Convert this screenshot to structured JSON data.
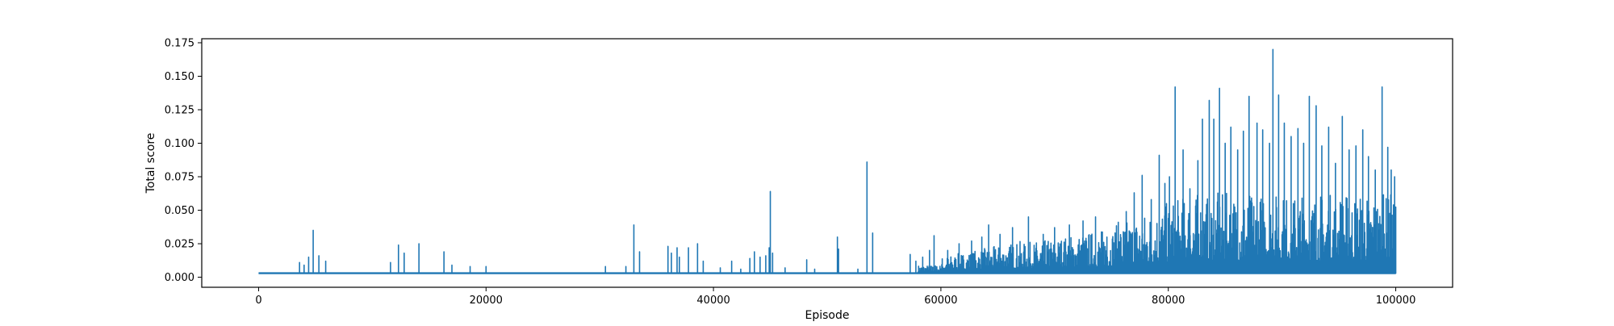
{
  "chart_data": {
    "type": "line",
    "title": "",
    "xlabel": "Episode",
    "ylabel": "Total score",
    "xlim": [
      -5000,
      105000
    ],
    "ylim": [
      -0.0075,
      0.178
    ],
    "x_ticks": [
      0,
      20000,
      40000,
      60000,
      80000,
      100000
    ],
    "x_tick_labels": [
      "0",
      "20000",
      "40000",
      "60000",
      "80000",
      "100000"
    ],
    "y_ticks": [
      0.0,
      0.025,
      0.05,
      0.075,
      0.1,
      0.125,
      0.15,
      0.175
    ],
    "y_tick_labels": [
      "0.000",
      "0.025",
      "0.050",
      "0.075",
      "0.100",
      "0.125",
      "0.150",
      "0.175"
    ],
    "grid": false,
    "legend": "none",
    "baseline": 0.003,
    "series": [
      {
        "color": "#1f77b4",
        "episodes": 100000,
        "spikes": [
          [
            3600,
            0.011
          ],
          [
            4000,
            0.009
          ],
          [
            4400,
            0.015
          ],
          [
            4800,
            0.035
          ],
          [
            5300,
            0.016
          ],
          [
            5900,
            0.012
          ],
          [
            11600,
            0.011
          ],
          [
            12300,
            0.024
          ],
          [
            12800,
            0.018
          ],
          [
            14100,
            0.025
          ],
          [
            16300,
            0.019
          ],
          [
            17000,
            0.009
          ],
          [
            18600,
            0.008
          ],
          [
            20000,
            0.008
          ],
          [
            30500,
            0.008
          ],
          [
            32300,
            0.008
          ],
          [
            33000,
            0.039
          ],
          [
            33500,
            0.019
          ],
          [
            36000,
            0.023
          ],
          [
            36300,
            0.018
          ],
          [
            36800,
            0.022
          ],
          [
            37000,
            0.015
          ],
          [
            37800,
            0.022
          ],
          [
            38600,
            0.025
          ],
          [
            39100,
            0.012
          ],
          [
            40600,
            0.007
          ],
          [
            41600,
            0.012
          ],
          [
            42400,
            0.006
          ],
          [
            43200,
            0.014
          ],
          [
            43600,
            0.019
          ],
          [
            44100,
            0.015
          ],
          [
            44600,
            0.016
          ],
          [
            44900,
            0.022
          ],
          [
            45000,
            0.064
          ],
          [
            45200,
            0.018
          ],
          [
            46300,
            0.007
          ],
          [
            48200,
            0.013
          ],
          [
            48900,
            0.006
          ],
          [
            50900,
            0.03
          ],
          [
            51000,
            0.021
          ],
          [
            52700,
            0.006
          ],
          [
            53500,
            0.086
          ],
          [
            54000,
            0.033
          ],
          [
            57300,
            0.017
          ],
          [
            57800,
            0.012
          ],
          [
            58400,
            0.015
          ],
          [
            59000,
            0.02
          ],
          [
            59400,
            0.031
          ],
          [
            60600,
            0.02
          ],
          [
            61600,
            0.025
          ],
          [
            62700,
            0.027
          ],
          [
            63600,
            0.03
          ],
          [
            64200,
            0.039
          ],
          [
            65200,
            0.032
          ],
          [
            66300,
            0.037
          ],
          [
            67700,
            0.045
          ],
          [
            69000,
            0.032
          ],
          [
            70000,
            0.037
          ],
          [
            71300,
            0.039
          ],
          [
            72500,
            0.042
          ],
          [
            73600,
            0.045
          ],
          [
            74600,
            0.03
          ],
          [
            75600,
            0.041
          ],
          [
            76300,
            0.049
          ],
          [
            77000,
            0.063
          ],
          [
            77700,
            0.076
          ],
          [
            78500,
            0.058
          ],
          [
            79200,
            0.091
          ],
          [
            79700,
            0.07
          ],
          [
            80100,
            0.075
          ],
          [
            80600,
            0.142
          ],
          [
            81300,
            0.095
          ],
          [
            81900,
            0.066
          ],
          [
            82600,
            0.087
          ],
          [
            83000,
            0.118
          ],
          [
            83600,
            0.132
          ],
          [
            84000,
            0.118
          ],
          [
            84500,
            0.141
          ],
          [
            85000,
            0.1
          ],
          [
            85500,
            0.112
          ],
          [
            86100,
            0.095
          ],
          [
            86600,
            0.109
          ],
          [
            87100,
            0.135
          ],
          [
            87800,
            0.115
          ],
          [
            88300,
            0.11
          ],
          [
            88900,
            0.1
          ],
          [
            89200,
            0.17
          ],
          [
            89700,
            0.136
          ],
          [
            90200,
            0.115
          ],
          [
            90800,
            0.105
          ],
          [
            91400,
            0.111
          ],
          [
            91900,
            0.1
          ],
          [
            92400,
            0.135
          ],
          [
            93000,
            0.128
          ],
          [
            93500,
            0.098
          ],
          [
            94100,
            0.112
          ],
          [
            94700,
            0.085
          ],
          [
            95300,
            0.12
          ],
          [
            95900,
            0.095
          ],
          [
            96500,
            0.098
          ],
          [
            97100,
            0.11
          ],
          [
            97600,
            0.09
          ],
          [
            98200,
            0.08
          ],
          [
            98800,
            0.142
          ],
          [
            99300,
            0.097
          ],
          [
            99600,
            0.08
          ],
          [
            99900,
            0.075
          ]
        ]
      }
    ]
  }
}
